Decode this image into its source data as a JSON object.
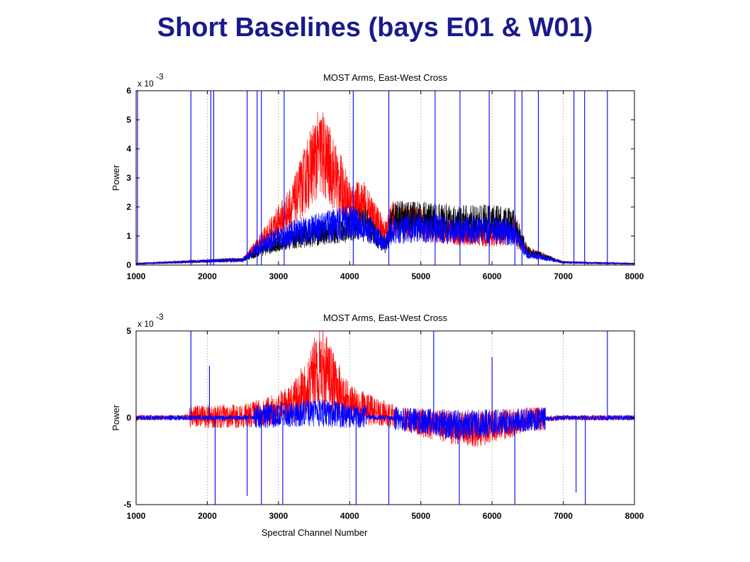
{
  "slide": {
    "title": "Short Baselines (bays E01 & W01)"
  },
  "chart_data": [
    {
      "type": "line",
      "title": "MOST Arms, East-West Cross",
      "xlabel": "",
      "ylabel": "Power",
      "y_multiplier": "x 10",
      "y_exponent": "-3",
      "xlim": [
        1000,
        8000
      ],
      "ylim": [
        0,
        6
      ],
      "xticks": [
        "1000",
        "2000",
        "3000",
        "4000",
        "5000",
        "6000",
        "7000",
        "8000"
      ],
      "yticks": [
        "0",
        "1",
        "2",
        "3",
        "4",
        "5",
        "6"
      ],
      "ytick_values": [
        0,
        1,
        2,
        3,
        4,
        5,
        6
      ],
      "grid": "vertical dotted",
      "colors": {
        "series_a": "#ff0000",
        "series_b": "#000000",
        "series_c": "#0000ff"
      },
      "series": [
        {
          "color": "#ff0000",
          "x": [
            1000,
            2500,
            2800,
            3200,
            3500,
            3600,
            3800,
            4000,
            4200,
            4500,
            4600,
            5000,
            5500,
            6000,
            6300,
            6500,
            7000,
            8000
          ],
          "y": [
            0.05,
            0.2,
            1.0,
            2.2,
            3.9,
            4.2,
            3.3,
            2.3,
            2.2,
            1.2,
            1.7,
            1.5,
            1.2,
            1.1,
            1.3,
            0.5,
            0.1,
            0.05
          ]
        },
        {
          "color": "#000000",
          "x": [
            1000,
            2500,
            2800,
            3200,
            3600,
            4000,
            4200,
            4500,
            4600,
            5000,
            5500,
            6000,
            6300,
            6500,
            7000,
            8000
          ],
          "y": [
            0.05,
            0.2,
            0.6,
            1.0,
            1.2,
            1.4,
            1.6,
            0.7,
            1.7,
            1.7,
            1.6,
            1.6,
            1.5,
            0.5,
            0.1,
            0.05
          ]
        },
        {
          "color": "#0000ff",
          "x": [
            1000,
            2500,
            2800,
            3200,
            3600,
            4000,
            4200,
            4500,
            4600,
            5000,
            5500,
            6000,
            6300,
            6500,
            7000,
            8000
          ],
          "y": [
            0.05,
            0.2,
            0.8,
            1.2,
            1.4,
            1.6,
            1.4,
            0.8,
            1.3,
            1.4,
            1.3,
            1.3,
            1.2,
            0.4,
            0.1,
            0.05
          ]
        }
      ],
      "spikes": {
        "color": "#0000ff",
        "x": [
          1020,
          1770,
          2050,
          2090,
          2560,
          2700,
          2760,
          3080,
          4050,
          4550,
          5200,
          5550,
          5960,
          6320,
          6420,
          6650,
          7150,
          7300,
          7620
        ],
        "y": [
          6,
          6,
          6,
          6,
          6,
          6,
          6,
          6,
          6,
          6,
          6,
          6,
          6,
          6,
          6,
          6,
          6,
          6,
          6
        ]
      }
    },
    {
      "type": "line",
      "title": "MOST Arms, East-West Cross",
      "xlabel": "Spectral Channel Number",
      "ylabel": "Power",
      "y_multiplier": "x 10",
      "y_exponent": "-3",
      "xlim": [
        1000,
        8000
      ],
      "ylim": [
        -5,
        5
      ],
      "xticks": [
        "1000",
        "2000",
        "3000",
        "4000",
        "5000",
        "6000",
        "7000",
        "8000"
      ],
      "yticks": [
        "-5",
        "0",
        "5"
      ],
      "ytick_values": [
        -5,
        0,
        5
      ],
      "grid": "vertical dotted",
      "colors": {
        "series_a": "#ff0000",
        "series_c": "#0000ff"
      },
      "series": [
        {
          "color": "#ff0000",
          "x": [
            1000,
            2500,
            2800,
            3200,
            3500,
            3600,
            3800,
            4000,
            4500,
            5000,
            5500,
            5800,
            6000,
            6300,
            6500,
            7000,
            8000
          ],
          "y": [
            0,
            0.1,
            0.3,
            0.8,
            2.5,
            3.0,
            1.8,
            0.8,
            0.2,
            -0.3,
            -0.6,
            -0.7,
            -0.5,
            -0.3,
            -0.1,
            0,
            0
          ]
        },
        {
          "color": "#0000ff",
          "x": [
            1000,
            2500,
            2800,
            3200,
            3600,
            4000,
            4500,
            5000,
            5500,
            5800,
            6000,
            6300,
            6500,
            7000,
            8000
          ],
          "y": [
            0,
            0,
            0.1,
            0.2,
            0.3,
            0.1,
            0.0,
            -0.2,
            -0.4,
            -0.4,
            -0.3,
            -0.2,
            -0.1,
            0,
            0
          ]
        }
      ],
      "spikes": {
        "color": "#0000ff",
        "x": [
          1770,
          2030,
          2110,
          2560,
          2760,
          3060,
          4090,
          4550,
          5180,
          5540,
          6000,
          6320,
          7180,
          7310,
          7620
        ],
        "y": [
          5,
          3,
          -5,
          -4.5,
          -5,
          -5,
          -5,
          -5,
          5,
          -5,
          3.5,
          -5,
          -4.3,
          -5,
          5
        ]
      }
    }
  ]
}
